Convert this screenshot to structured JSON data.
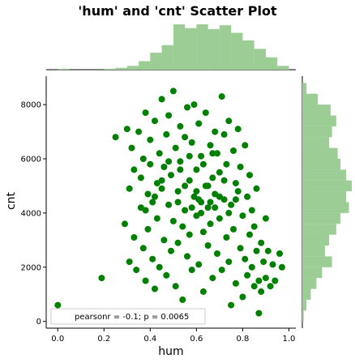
{
  "chart_data": {
    "type": "scatter",
    "title": "'hum' and 'cnt' Scatter Plot",
    "xlabel": "hum",
    "ylabel": "cnt",
    "xlim": [
      -0.05,
      1.03
    ],
    "ylim": [
      -250,
      9050
    ],
    "x_ticks": [
      0.0,
      0.2,
      0.4,
      0.6,
      0.8,
      1.0
    ],
    "x_tick_labels": [
      "0.0",
      "0.2",
      "0.4",
      "0.6",
      "0.8",
      "1.0"
    ],
    "y_ticks": [
      0,
      2000,
      4000,
      6000,
      8000
    ],
    "y_tick_labels": [
      "0",
      "2000",
      "4000",
      "6000",
      "8000"
    ],
    "legend": "pearsonr = -0.1; p = 0.0065",
    "legend_position": "lower-left",
    "point_color": "#008000",
    "hist_color": "#9bcd94",
    "series": [
      {
        "name": "hum vs cnt",
        "points": [
          [
            0.0,
            600
          ],
          [
            0.19,
            1600
          ],
          [
            0.25,
            6800
          ],
          [
            0.29,
            3600
          ],
          [
            0.3,
            7100
          ],
          [
            0.31,
            4900
          ],
          [
            0.31,
            2200
          ],
          [
            0.32,
            6400
          ],
          [
            0.33,
            5600
          ],
          [
            0.33,
            3100
          ],
          [
            0.34,
            1900
          ],
          [
            0.35,
            7000
          ],
          [
            0.36,
            5300
          ],
          [
            0.36,
            4200
          ],
          [
            0.37,
            6000
          ],
          [
            0.37,
            2700
          ],
          [
            0.38,
            7700
          ],
          [
            0.38,
            1500
          ],
          [
            0.39,
            4700
          ],
          [
            0.39,
            3400
          ],
          [
            0.4,
            5800
          ],
          [
            0.4,
            6700
          ],
          [
            0.41,
            2300
          ],
          [
            0.41,
            4400
          ],
          [
            0.42,
            7400
          ],
          [
            0.42,
            1200
          ],
          [
            0.43,
            5100
          ],
          [
            0.43,
            3800
          ],
          [
            0.44,
            6200
          ],
          [
            0.44,
            2000
          ],
          [
            0.45,
            8200
          ],
          [
            0.45,
            4900
          ],
          [
            0.46,
            3000
          ],
          [
            0.46,
            5700
          ],
          [
            0.47,
            6900
          ],
          [
            0.47,
            1700
          ],
          [
            0.48,
            4300
          ],
          [
            0.48,
            7600
          ],
          [
            0.49,
            2600
          ],
          [
            0.49,
            5400
          ],
          [
            0.5,
            3700
          ],
          [
            0.5,
            8500
          ],
          [
            0.51,
            6400
          ],
          [
            0.51,
            1300
          ],
          [
            0.52,
            4800
          ],
          [
            0.52,
            2900
          ],
          [
            0.53,
            7200
          ],
          [
            0.53,
            5900
          ],
          [
            0.54,
            3500
          ],
          [
            0.54,
            800
          ],
          [
            0.55,
            6800
          ],
          [
            0.55,
            4100
          ],
          [
            0.56,
            2400
          ],
          [
            0.56,
            7900
          ],
          [
            0.57,
            5200
          ],
          [
            0.57,
            3200
          ],
          [
            0.58,
            6600
          ],
          [
            0.58,
            1900
          ],
          [
            0.59,
            4600
          ],
          [
            0.59,
            8000
          ],
          [
            0.6,
            3900
          ],
          [
            0.6,
            5600
          ],
          [
            0.61,
            2100
          ],
          [
            0.61,
            7300
          ],
          [
            0.62,
            4400
          ],
          [
            0.62,
            6100
          ],
          [
            0.63,
            3300
          ],
          [
            0.63,
            1100
          ],
          [
            0.64,
            5000
          ],
          [
            0.64,
            7700
          ],
          [
            0.65,
            2800
          ],
          [
            0.65,
            4200
          ],
          [
            0.66,
            6500
          ],
          [
            0.66,
            3600
          ],
          [
            0.67,
            5300
          ],
          [
            0.67,
            1600
          ],
          [
            0.68,
            7000
          ],
          [
            0.68,
            4700
          ],
          [
            0.69,
            2500
          ],
          [
            0.69,
            6200
          ],
          [
            0.7,
            3800
          ],
          [
            0.7,
            5500
          ],
          [
            0.71,
            8300
          ],
          [
            0.71,
            1900
          ],
          [
            0.72,
            4500
          ],
          [
            0.72,
            6900
          ],
          [
            0.73,
            3100
          ],
          [
            0.73,
            5800
          ],
          [
            0.74,
            2200
          ],
          [
            0.74,
            7400
          ],
          [
            0.75,
            4300
          ],
          [
            0.75,
            600
          ],
          [
            0.76,
            6300
          ],
          [
            0.76,
            3400
          ],
          [
            0.77,
            5100
          ],
          [
            0.77,
            1400
          ],
          [
            0.78,
            4800
          ],
          [
            0.78,
            7100
          ],
          [
            0.79,
            2700
          ],
          [
            0.79,
            5700
          ],
          [
            0.8,
            3900
          ],
          [
            0.8,
            900
          ],
          [
            0.81,
            6500
          ],
          [
            0.81,
            2300
          ],
          [
            0.82,
            4600
          ],
          [
            0.82,
            1700
          ],
          [
            0.83,
            5400
          ],
          [
            0.83,
            3200
          ],
          [
            0.84,
            2000
          ],
          [
            0.84,
            4100
          ],
          [
            0.85,
            1300
          ],
          [
            0.85,
            3500
          ],
          [
            0.86,
            2600
          ],
          [
            0.86,
            4900
          ],
          [
            0.87,
            1500
          ],
          [
            0.87,
            300
          ],
          [
            0.88,
            2900
          ],
          [
            0.88,
            1100
          ],
          [
            0.89,
            2200
          ],
          [
            0.9,
            3800
          ],
          [
            0.9,
            1600
          ],
          [
            0.91,
            2600
          ],
          [
            0.92,
            1300
          ],
          [
            0.93,
            2100
          ],
          [
            0.94,
            1500
          ],
          [
            0.96,
            2500
          ],
          [
            0.97,
            2000
          ],
          [
            0.45,
            5200
          ],
          [
            0.55,
            5000
          ],
          [
            0.6,
            4800
          ],
          [
            0.65,
            5000
          ],
          [
            0.7,
            4600
          ],
          [
            0.58,
            4200
          ],
          [
            0.62,
            4000
          ],
          [
            0.52,
            4400
          ],
          [
            0.68,
            4200
          ],
          [
            0.74,
            4000
          ],
          [
            0.48,
            5900
          ],
          [
            0.57,
            6100
          ],
          [
            0.63,
            5800
          ],
          [
            0.67,
            6200
          ],
          [
            0.72,
            5200
          ],
          [
            0.77,
            4500
          ],
          [
            0.53,
            5600
          ],
          [
            0.42,
            4600
          ],
          [
            0.38,
            4100
          ],
          [
            0.66,
            4400
          ],
          [
            0.61,
            4500
          ]
        ]
      }
    ],
    "hist_top": {
      "bin_edges": [
        0.0,
        0.05,
        0.1,
        0.15,
        0.2,
        0.25,
        0.3,
        0.35,
        0.4,
        0.45,
        0.5,
        0.55,
        0.6,
        0.65,
        0.7,
        0.75,
        0.8,
        0.85,
        0.9,
        0.95,
        1.0
      ],
      "counts": [
        1,
        0,
        0,
        0,
        1,
        2,
        4,
        9,
        18,
        26,
        48,
        44,
        48,
        43,
        47,
        39,
        31,
        22,
        13,
        4
      ]
    },
    "hist_right": {
      "bin_edges": [
        0,
        400,
        800,
        1200,
        1600,
        2000,
        2400,
        2800,
        3200,
        3600,
        4000,
        4400,
        4800,
        5200,
        5600,
        6000,
        6400,
        6800,
        7200,
        7600,
        8000,
        8400,
        8800
      ],
      "counts": [
        1,
        3,
        6,
        10,
        14,
        21,
        16,
        19,
        24,
        27,
        33,
        31,
        35,
        31,
        27,
        25,
        19,
        21,
        24,
        20,
        11,
        3
      ]
    }
  }
}
